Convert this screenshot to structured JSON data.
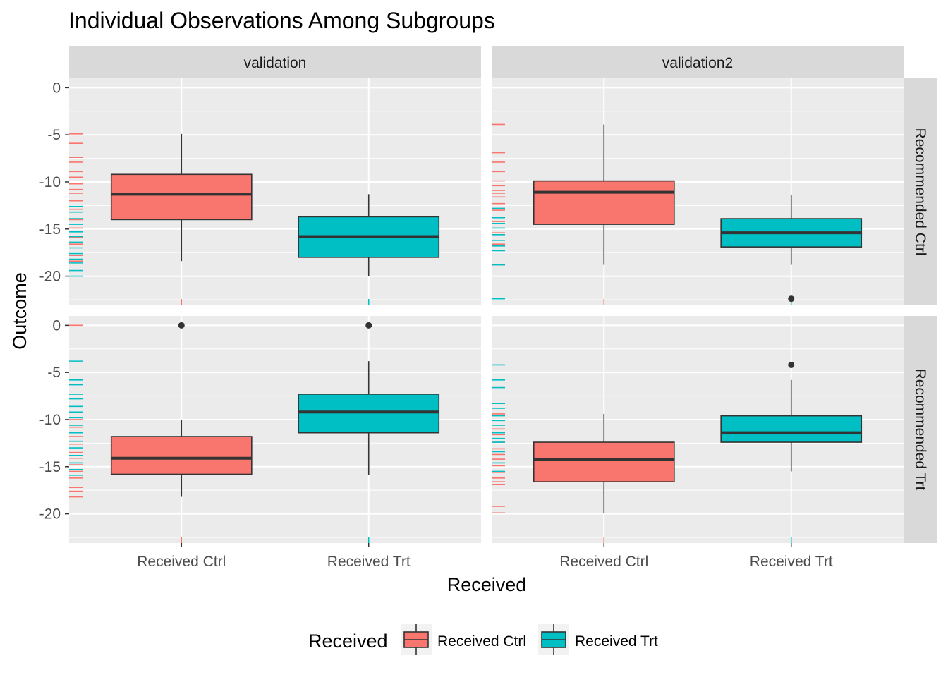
{
  "chart_data": {
    "type": "boxplot",
    "title": "Individual Observations Among Subgroups",
    "xlabel": "Received",
    "ylabel": "Outcome",
    "ylim": [
      -23.1,
      1.0
    ],
    "yticks": [
      0,
      -5,
      -10,
      -15,
      -20
    ],
    "categories": [
      "Received Ctrl",
      "Received Trt"
    ],
    "column_facets": [
      "validation",
      "validation2"
    ],
    "row_facets": [
      "Recommended Ctrl",
      "Recommended Trt"
    ],
    "legend": {
      "title": "Received",
      "position": "bottom",
      "entries": [
        {
          "label": "Received Ctrl",
          "color": "#F8766D"
        },
        {
          "label": "Received Trt",
          "color": "#00BFC4"
        }
      ]
    },
    "grid": true,
    "panels": [
      {
        "column": "validation",
        "row": "Recommended Ctrl",
        "boxes": [
          {
            "category": "Received Ctrl",
            "whisker_low": -18.4,
            "q1": -14.0,
            "median": -11.3,
            "q3": -9.2,
            "whisker_high": -4.9,
            "outliers": []
          },
          {
            "category": "Received Trt",
            "whisker_low": -20.0,
            "q1": -18.0,
            "median": -15.8,
            "q3": -13.7,
            "whisker_high": -11.3,
            "outliers": []
          }
        ],
        "rug": [
          {
            "y": -4.9,
            "group": "Received Ctrl"
          },
          {
            "y": -5.9,
            "group": "Received Ctrl"
          },
          {
            "y": -7.4,
            "group": "Received Ctrl"
          },
          {
            "y": -7.9,
            "group": "Received Ctrl"
          },
          {
            "y": -8.9,
            "group": "Received Ctrl"
          },
          {
            "y": -9.5,
            "group": "Received Ctrl"
          },
          {
            "y": -10.2,
            "group": "Received Ctrl"
          },
          {
            "y": -10.8,
            "group": "Received Ctrl"
          },
          {
            "y": -11.2,
            "group": "Received Ctrl"
          },
          {
            "y": -12.0,
            "group": "Received Ctrl"
          },
          {
            "y": -12.9,
            "group": "Received Ctrl"
          },
          {
            "y": -14.0,
            "group": "Received Ctrl"
          },
          {
            "y": -14.9,
            "group": "Received Ctrl"
          },
          {
            "y": -15.9,
            "group": "Received Ctrl"
          },
          {
            "y": -16.6,
            "group": "Received Ctrl"
          },
          {
            "y": -17.8,
            "group": "Received Ctrl"
          },
          {
            "y": -18.4,
            "group": "Received Ctrl"
          },
          {
            "y": -12.6,
            "group": "Received Trt"
          },
          {
            "y": -13.2,
            "group": "Received Trt"
          },
          {
            "y": -13.9,
            "group": "Received Trt"
          },
          {
            "y": -14.5,
            "group": "Received Trt"
          },
          {
            "y": -15.3,
            "group": "Received Trt"
          },
          {
            "y": -15.8,
            "group": "Received Trt"
          },
          {
            "y": -16.4,
            "group": "Received Trt"
          },
          {
            "y": -17.0,
            "group": "Received Trt"
          },
          {
            "y": -17.6,
            "group": "Received Trt"
          },
          {
            "y": -18.2,
            "group": "Received Trt"
          },
          {
            "y": -18.6,
            "group": "Received Trt"
          },
          {
            "y": -19.4,
            "group": "Received Trt"
          },
          {
            "y": -20.0,
            "group": "Received Trt"
          }
        ]
      },
      {
        "column": "validation2",
        "row": "Recommended Ctrl",
        "boxes": [
          {
            "category": "Received Ctrl",
            "whisker_low": -18.8,
            "q1": -14.5,
            "median": -11.1,
            "q3": -9.9,
            "whisker_high": -3.9,
            "outliers": []
          },
          {
            "category": "Received Trt",
            "whisker_low": -18.8,
            "q1": -16.9,
            "median": -15.4,
            "q3": -13.9,
            "whisker_high": -11.4,
            "outliers": [
              -22.4
            ]
          }
        ],
        "rug": [
          {
            "y": -3.9,
            "group": "Received Ctrl"
          },
          {
            "y": -6.9,
            "group": "Received Ctrl"
          },
          {
            "y": -7.9,
            "group": "Received Ctrl"
          },
          {
            "y": -8.9,
            "group": "Received Ctrl"
          },
          {
            "y": -9.9,
            "group": "Received Ctrl"
          },
          {
            "y": -10.4,
            "group": "Received Ctrl"
          },
          {
            "y": -10.9,
            "group": "Received Ctrl"
          },
          {
            "y": -11.2,
            "group": "Received Ctrl"
          },
          {
            "y": -11.6,
            "group": "Received Ctrl"
          },
          {
            "y": -12.3,
            "group": "Received Ctrl"
          },
          {
            "y": -13.0,
            "group": "Received Ctrl"
          },
          {
            "y": -14.2,
            "group": "Received Ctrl"
          },
          {
            "y": -15.4,
            "group": "Received Ctrl"
          },
          {
            "y": -16.6,
            "group": "Received Ctrl"
          },
          {
            "y": -18.8,
            "group": "Received Ctrl"
          },
          {
            "y": -12.8,
            "group": "Received Trt"
          },
          {
            "y": -13.8,
            "group": "Received Trt"
          },
          {
            "y": -14.4,
            "group": "Received Trt"
          },
          {
            "y": -14.9,
            "group": "Received Trt"
          },
          {
            "y": -15.6,
            "group": "Received Trt"
          },
          {
            "y": -16.2,
            "group": "Received Trt"
          },
          {
            "y": -16.8,
            "group": "Received Trt"
          },
          {
            "y": -17.3,
            "group": "Received Trt"
          },
          {
            "y": -18.8,
            "group": "Received Trt"
          },
          {
            "y": -22.4,
            "group": "Received Trt"
          }
        ]
      },
      {
        "column": "validation",
        "row": "Recommended Trt",
        "boxes": [
          {
            "category": "Received Ctrl",
            "whisker_low": -18.2,
            "q1": -15.8,
            "median": -14.1,
            "q3": -11.8,
            "whisker_high": -10.0,
            "outliers": [
              0.0
            ]
          },
          {
            "category": "Received Trt",
            "whisker_low": -15.9,
            "q1": -11.4,
            "median": -9.2,
            "q3": -7.3,
            "whisker_high": -3.8,
            "outliers": [
              0.0
            ]
          }
        ],
        "rug": [
          {
            "y": 0.0,
            "group": "Received Ctrl"
          },
          {
            "y": -10.0,
            "group": "Received Ctrl"
          },
          {
            "y": -10.8,
            "group": "Received Ctrl"
          },
          {
            "y": -11.8,
            "group": "Received Ctrl"
          },
          {
            "y": -12.6,
            "group": "Received Ctrl"
          },
          {
            "y": -13.5,
            "group": "Received Ctrl"
          },
          {
            "y": -14.1,
            "group": "Received Ctrl"
          },
          {
            "y": -14.8,
            "group": "Received Ctrl"
          },
          {
            "y": -15.5,
            "group": "Received Ctrl"
          },
          {
            "y": -16.2,
            "group": "Received Ctrl"
          },
          {
            "y": -17.2,
            "group": "Received Ctrl"
          },
          {
            "y": -17.6,
            "group": "Received Ctrl"
          },
          {
            "y": -18.2,
            "group": "Received Ctrl"
          },
          {
            "y": -3.8,
            "group": "Received Trt"
          },
          {
            "y": -5.8,
            "group": "Received Trt"
          },
          {
            "y": -6.3,
            "group": "Received Trt"
          },
          {
            "y": -7.3,
            "group": "Received Trt"
          },
          {
            "y": -7.8,
            "group": "Received Trt"
          },
          {
            "y": -8.6,
            "group": "Received Trt"
          },
          {
            "y": -9.2,
            "group": "Received Trt"
          },
          {
            "y": -9.8,
            "group": "Received Trt"
          },
          {
            "y": -10.6,
            "group": "Received Trt"
          },
          {
            "y": -11.4,
            "group": "Received Trt"
          },
          {
            "y": -12.3,
            "group": "Received Trt"
          },
          {
            "y": -13.0,
            "group": "Received Trt"
          },
          {
            "y": -13.8,
            "group": "Received Trt"
          },
          {
            "y": -14.6,
            "group": "Received Trt"
          },
          {
            "y": -15.3,
            "group": "Received Trt"
          },
          {
            "y": -15.9,
            "group": "Received Trt"
          }
        ]
      },
      {
        "column": "validation2",
        "row": "Recommended Trt",
        "boxes": [
          {
            "category": "Received Ctrl",
            "whisker_low": -19.9,
            "q1": -16.6,
            "median": -14.2,
            "q3": -12.4,
            "whisker_high": -9.4,
            "outliers": []
          },
          {
            "category": "Received Trt",
            "whisker_low": -15.5,
            "q1": -12.4,
            "median": -11.4,
            "q3": -9.6,
            "whisker_high": -5.8,
            "outliers": [
              -4.2
            ]
          }
        ],
        "rug": [
          {
            "y": -9.4,
            "group": "Received Ctrl"
          },
          {
            "y": -11.0,
            "group": "Received Ctrl"
          },
          {
            "y": -11.6,
            "group": "Received Ctrl"
          },
          {
            "y": -12.4,
            "group": "Received Ctrl"
          },
          {
            "y": -13.1,
            "group": "Received Ctrl"
          },
          {
            "y": -13.7,
            "group": "Received Ctrl"
          },
          {
            "y": -14.2,
            "group": "Received Ctrl"
          },
          {
            "y": -14.9,
            "group": "Received Ctrl"
          },
          {
            "y": -15.6,
            "group": "Received Ctrl"
          },
          {
            "y": -16.2,
            "group": "Received Ctrl"
          },
          {
            "y": -16.6,
            "group": "Received Ctrl"
          },
          {
            "y": -16.9,
            "group": "Received Ctrl"
          },
          {
            "y": -19.2,
            "group": "Received Ctrl"
          },
          {
            "y": -19.9,
            "group": "Received Ctrl"
          },
          {
            "y": -4.2,
            "group": "Received Trt"
          },
          {
            "y": -5.8,
            "group": "Received Trt"
          },
          {
            "y": -6.6,
            "group": "Received Trt"
          },
          {
            "y": -8.3,
            "group": "Received Trt"
          },
          {
            "y": -8.8,
            "group": "Received Trt"
          },
          {
            "y": -9.6,
            "group": "Received Trt"
          },
          {
            "y": -10.1,
            "group": "Received Trt"
          },
          {
            "y": -10.6,
            "group": "Received Trt"
          },
          {
            "y": -11.4,
            "group": "Received Trt"
          },
          {
            "y": -12.0,
            "group": "Received Trt"
          },
          {
            "y": -12.4,
            "group": "Received Trt"
          },
          {
            "y": -13.4,
            "group": "Received Trt"
          },
          {
            "y": -14.6,
            "group": "Received Trt"
          },
          {
            "y": -15.5,
            "group": "Received Trt"
          }
        ]
      }
    ]
  }
}
